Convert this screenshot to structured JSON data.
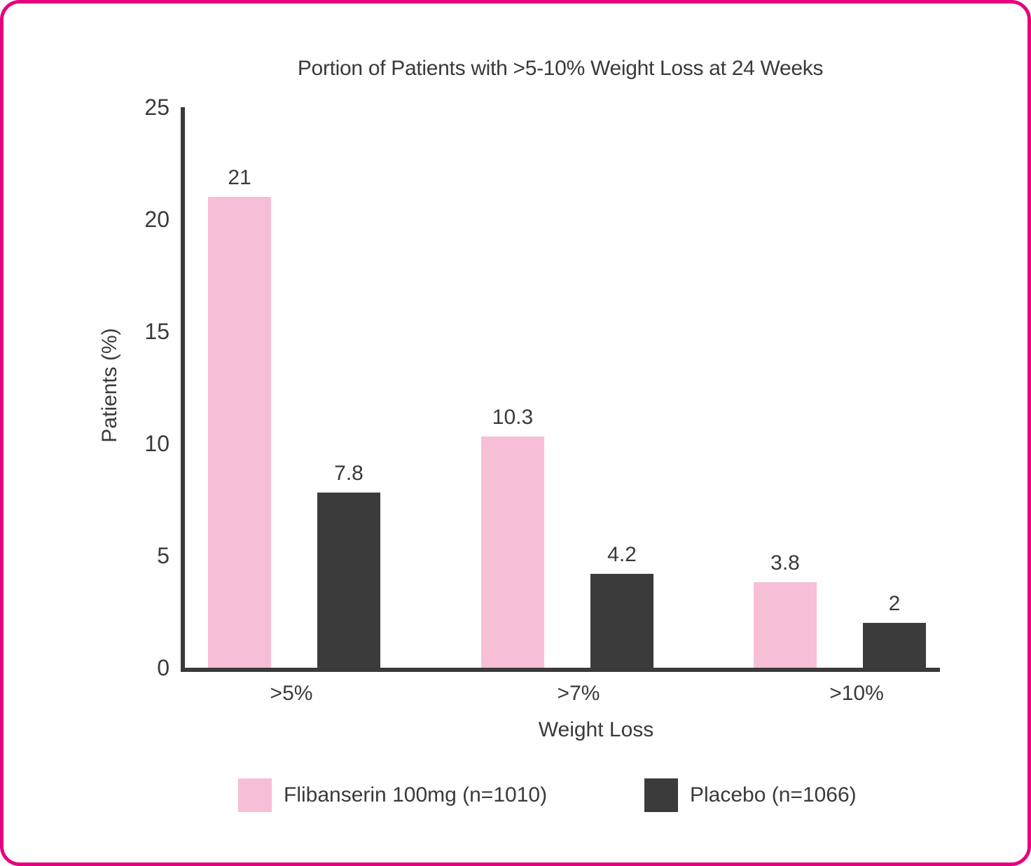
{
  "frame": {
    "border_color": "#E6007E",
    "background_color": "#FFFFFF",
    "text_color": "#3A3A3A",
    "axis_color": "#3A3A3A"
  },
  "chart_data": {
    "type": "bar",
    "title": "Portion of Patients with >5-10% Weight Loss at 24 Weeks",
    "xlabel": "Weight Loss",
    "ylabel": "Patients (%)",
    "categories": [
      ">5%",
      ">7%",
      ">10%"
    ],
    "series": [
      {
        "name": "Flibanserin 100mg (n=1010)",
        "color": "#F7BED7",
        "values": [
          21,
          10.3,
          3.8
        ]
      },
      {
        "name": "Placebo (n=1066)",
        "color": "#3B3B3B",
        "values": [
          7.8,
          4.2,
          2
        ]
      }
    ],
    "ylim": [
      0,
      25
    ],
    "y_ticks": [
      25,
      20,
      15,
      10,
      5,
      0
    ],
    "grid": false,
    "legend_position": "bottom"
  }
}
